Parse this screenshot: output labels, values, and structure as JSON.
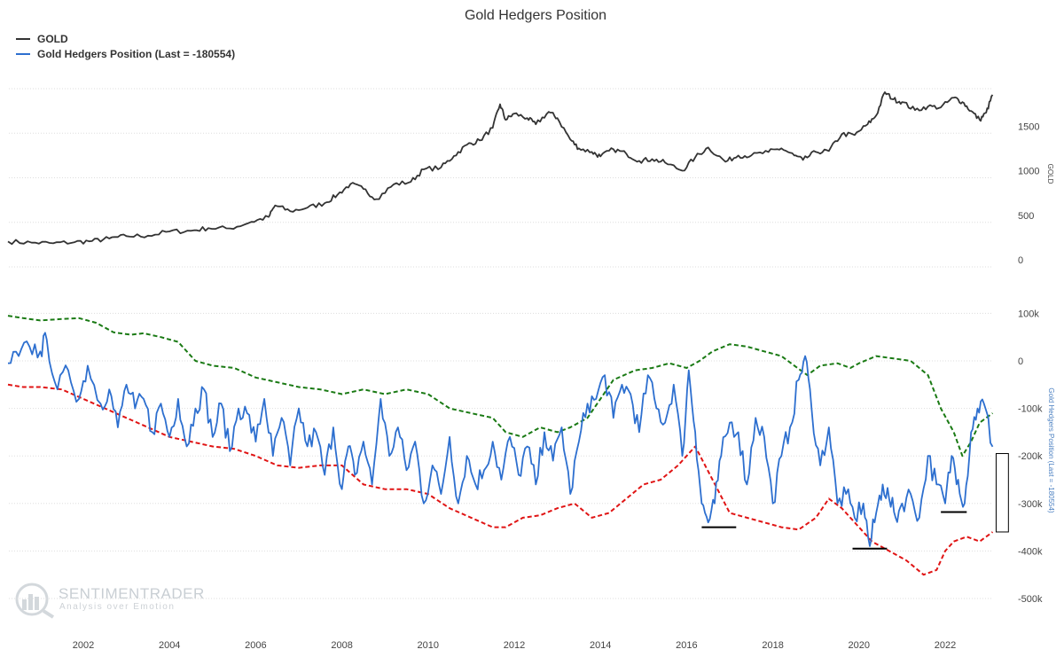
{
  "chart_data": {
    "type": "line",
    "title": "Gold Hedgers Position",
    "legend": [
      {
        "name": "GOLD",
        "color": "#333333"
      },
      {
        "name": "Gold Hedgers Position (Last = -180554)",
        "color": "#2d6fcf"
      }
    ],
    "x_ticks": [
      "2002",
      "2004",
      "2006",
      "2008",
      "2010",
      "2012",
      "2014",
      "2016",
      "2018",
      "2020",
      "2022"
    ],
    "x_range": [
      2000.25,
      2023.1
    ],
    "upper_panel": {
      "ylabel": "GOLD",
      "y_ticks": [
        "0",
        "500",
        "1000",
        "1500"
      ],
      "y_tick_values": [
        0,
        500,
        1000,
        1500
      ],
      "ylim": [
        0,
        2000
      ],
      "series": [
        {
          "name": "GOLD",
          "color": "#333333",
          "x": [
            2000.25,
            2000.8,
            2001.3,
            2001.8,
            2002.2,
            2002.6,
            2003.0,
            2003.5,
            2004.0,
            2004.5,
            2004.9,
            2005.4,
            2005.9,
            2006.3,
            2006.45,
            2006.8,
            2007.2,
            2007.6,
            2007.9,
            2008.2,
            2008.5,
            2008.8,
            2009.2,
            2009.6,
            2009.9,
            2010.3,
            2010.6,
            2010.9,
            2011.2,
            2011.5,
            2011.67,
            2011.8,
            2012.0,
            2012.3,
            2012.5,
            2012.8,
            2013.0,
            2013.3,
            2013.5,
            2013.8,
            2014.0,
            2014.3,
            2014.6,
            2014.9,
            2015.2,
            2015.5,
            2015.9,
            2016.2,
            2016.5,
            2016.9,
            2017.2,
            2017.5,
            2017.9,
            2018.2,
            2018.5,
            2018.7,
            2019.0,
            2019.3,
            2019.6,
            2019.9,
            2020.2,
            2020.4,
            2020.6,
            2020.8,
            2021.0,
            2021.3,
            2021.6,
            2021.9,
            2022.2,
            2022.4,
            2022.6,
            2022.8,
            2022.95,
            2023.1
          ],
          "values": [
            285,
            272,
            265,
            278,
            290,
            318,
            345,
            350,
            398,
            405,
            435,
            432,
            505,
            560,
            690,
            625,
            665,
            715,
            810,
            930,
            875,
            760,
            925,
            955,
            1095,
            1115,
            1245,
            1370,
            1420,
            1560,
            1825,
            1650,
            1720,
            1670,
            1600,
            1740,
            1670,
            1430,
            1330,
            1290,
            1240,
            1320,
            1270,
            1190,
            1210,
            1170,
            1080,
            1230,
            1340,
            1180,
            1250,
            1250,
            1290,
            1330,
            1250,
            1200,
            1290,
            1300,
            1490,
            1480,
            1600,
            1700,
            1960,
            1880,
            1850,
            1760,
            1800,
            1790,
            1900,
            1850,
            1750,
            1650,
            1730,
            1930
          ]
        }
      ]
    },
    "lower_panel": {
      "ylabel": "Gold Hedgers Position (Last = -180554)",
      "y_ticks": [
        "100k",
        "0",
        "-100k",
        "-200k",
        "-300k",
        "-400k",
        "-500k"
      ],
      "y_tick_values": [
        100000,
        0,
        -100000,
        -200000,
        -300000,
        -400000,
        -500000
      ],
      "ylim": [
        -550000,
        120000
      ],
      "series": [
        {
          "name": "Gold Hedgers Position (Last = -180554)",
          "color": "#2d6fcf",
          "x": [
            2000.25,
            2000.5,
            2000.75,
            2001.0,
            2001.15,
            2001.4,
            2001.65,
            2001.9,
            2002.1,
            2002.4,
            2002.6,
            2002.8,
            2003.0,
            2003.2,
            2003.4,
            2003.6,
            2003.8,
            2004.0,
            2004.2,
            2004.4,
            2004.6,
            2004.8,
            2005.0,
            2005.2,
            2005.4,
            2005.6,
            2005.8,
            2006.0,
            2006.2,
            2006.4,
            2006.6,
            2006.8,
            2007.0,
            2007.2,
            2007.4,
            2007.6,
            2007.8,
            2008.0,
            2008.15,
            2008.3,
            2008.5,
            2008.7,
            2008.9,
            2009.1,
            2009.3,
            2009.5,
            2009.7,
            2009.9,
            2010.1,
            2010.3,
            2010.5,
            2010.7,
            2010.9,
            2011.1,
            2011.3,
            2011.5,
            2011.7,
            2011.9,
            2012.1,
            2012.3,
            2012.5,
            2012.7,
            2012.9,
            2013.1,
            2013.3,
            2013.5,
            2013.7,
            2013.9,
            2014.1,
            2014.3,
            2014.5,
            2014.7,
            2014.9,
            2015.1,
            2015.3,
            2015.5,
            2015.7,
            2015.9,
            2016.05,
            2016.2,
            2016.35,
            2016.5,
            2016.65,
            2016.8,
            2017.0,
            2017.2,
            2017.4,
            2017.6,
            2017.8,
            2018.0,
            2018.2,
            2018.4,
            2018.6,
            2018.75,
            2018.9,
            2019.1,
            2019.3,
            2019.5,
            2019.7,
            2019.9,
            2020.1,
            2020.25,
            2020.4,
            2020.55,
            2020.7,
            2020.85,
            2021.0,
            2021.2,
            2021.4,
            2021.6,
            2021.8,
            2022.0,
            2022.15,
            2022.3,
            2022.45,
            2022.6,
            2022.75,
            2022.9,
            2023.1
          ],
          "values": [
            -5000,
            10000,
            30000,
            20000,
            45000,
            -60000,
            -20000,
            -80000,
            -10000,
            -90000,
            -60000,
            -140000,
            -50000,
            -100000,
            -80000,
            -150000,
            -90000,
            -160000,
            -80000,
            -180000,
            -100000,
            -60000,
            -160000,
            -90000,
            -190000,
            -100000,
            -110000,
            -170000,
            -80000,
            -200000,
            -120000,
            -220000,
            -100000,
            -180000,
            -150000,
            -240000,
            -140000,
            -270000,
            -180000,
            -240000,
            -170000,
            -260000,
            -80000,
            -200000,
            -140000,
            -230000,
            -170000,
            -300000,
            -220000,
            -280000,
            -160000,
            -300000,
            -200000,
            -260000,
            -230000,
            -170000,
            -250000,
            -160000,
            -240000,
            -180000,
            -260000,
            -150000,
            -210000,
            -140000,
            -280000,
            -170000,
            -90000,
            -80000,
            -30000,
            -120000,
            -50000,
            -70000,
            -150000,
            -30000,
            -100000,
            -130000,
            -50000,
            -200000,
            -20000,
            -150000,
            -300000,
            -340000,
            -300000,
            -200000,
            -130000,
            -150000,
            -260000,
            -120000,
            -160000,
            -300000,
            -200000,
            -140000,
            -40000,
            10000,
            -100000,
            -220000,
            -140000,
            -300000,
            -280000,
            -330000,
            -300000,
            -390000,
            -320000,
            -260000,
            -290000,
            -330000,
            -300000,
            -280000,
            -330000,
            -200000,
            -260000,
            -300000,
            -200000,
            -250000,
            -300000,
            -150000,
            -100000,
            -90000,
            -180554
          ]
        },
        {
          "name": "Upper band",
          "color": "#1a7a14",
          "style": "dashed",
          "x": [
            2000.25,
            2000.6,
            2001.0,
            2001.5,
            2001.9,
            2002.3,
            2002.7,
            2003.1,
            2003.4,
            2003.8,
            2004.2,
            2004.6,
            2005.0,
            2005.5,
            2006.0,
            2006.5,
            2007.0,
            2007.5,
            2008.0,
            2008.5,
            2009.0,
            2009.5,
            2010.0,
            2010.5,
            2011.0,
            2011.5,
            2011.8,
            2012.2,
            2012.6,
            2013.0,
            2013.3,
            2013.7,
            2014.0,
            2014.3,
            2014.8,
            2015.2,
            2015.6,
            2016.0,
            2016.3,
            2016.6,
            2017.0,
            2017.4,
            2017.8,
            2018.2,
            2018.5,
            2018.8,
            2019.1,
            2019.5,
            2019.8,
            2020.0,
            2020.4,
            2020.8,
            2021.2,
            2021.6,
            2021.9,
            2022.2,
            2022.4,
            2022.6,
            2022.8,
            2023.1
          ],
          "values": [
            95000,
            90000,
            85000,
            88000,
            90000,
            80000,
            60000,
            55000,
            58000,
            50000,
            40000,
            0,
            -10000,
            -15000,
            -35000,
            -45000,
            -55000,
            -60000,
            -70000,
            -60000,
            -70000,
            -60000,
            -70000,
            -100000,
            -110000,
            -120000,
            -150000,
            -160000,
            -140000,
            -150000,
            -140000,
            -120000,
            -80000,
            -40000,
            -20000,
            -15000,
            -5000,
            -15000,
            0,
            20000,
            35000,
            30000,
            20000,
            10000,
            -10000,
            -30000,
            -10000,
            -5000,
            -15000,
            -5000,
            10000,
            5000,
            0,
            -30000,
            -100000,
            -150000,
            -200000,
            -170000,
            -130000,
            -110000
          ]
        },
        {
          "name": "Lower band",
          "color": "#e01414",
          "style": "dashed",
          "x": [
            2000.25,
            2000.6,
            2001.0,
            2001.5,
            2002.0,
            2002.5,
            2003.0,
            2003.5,
            2004.0,
            2004.5,
            2005.0,
            2005.5,
            2006.0,
            2006.5,
            2007.0,
            2007.5,
            2008.0,
            2008.5,
            2009.0,
            2009.5,
            2010.0,
            2010.5,
            2011.0,
            2011.5,
            2011.8,
            2012.2,
            2012.6,
            2013.0,
            2013.4,
            2013.8,
            2014.2,
            2014.6,
            2015.0,
            2015.4,
            2015.8,
            2016.2,
            2016.6,
            2017.0,
            2017.4,
            2017.8,
            2018.2,
            2018.6,
            2019.0,
            2019.3,
            2019.6,
            2019.9,
            2020.3,
            2020.7,
            2021.1,
            2021.5,
            2021.8,
            2022.0,
            2022.2,
            2022.5,
            2022.8,
            2023.1
          ],
          "values": [
            -50000,
            -55000,
            -55000,
            -60000,
            -80000,
            -100000,
            -120000,
            -140000,
            -160000,
            -170000,
            -180000,
            -185000,
            -200000,
            -220000,
            -225000,
            -220000,
            -220000,
            -260000,
            -270000,
            -270000,
            -280000,
            -310000,
            -330000,
            -350000,
            -350000,
            -330000,
            -325000,
            -310000,
            -300000,
            -330000,
            -320000,
            -290000,
            -260000,
            -250000,
            -220000,
            -180000,
            -250000,
            -320000,
            -330000,
            -340000,
            -350000,
            -355000,
            -330000,
            -290000,
            -310000,
            -340000,
            -380000,
            -400000,
            -420000,
            -450000,
            -440000,
            -400000,
            -380000,
            -370000,
            -380000,
            -360000
          ]
        }
      ]
    },
    "annotations": [
      {
        "type": "horizontal-marker",
        "x_start": 2016.35,
        "x_end": 2017.15,
        "value": -350000
      },
      {
        "type": "horizontal-marker",
        "x_start": 2019.85,
        "x_end": 2020.65,
        "value": -395000
      },
      {
        "type": "horizontal-marker",
        "x_start": 2021.9,
        "x_end": 2022.5,
        "value": -318000
      },
      {
        "type": "highlight-box",
        "x_start": 2023.1,
        "x_end": 2023.55,
        "y_start": -195000,
        "y_end": -360000
      }
    ]
  },
  "watermark": {
    "brand": "SENTIMENTRADER",
    "tagline": "Analysis over Emotion"
  }
}
